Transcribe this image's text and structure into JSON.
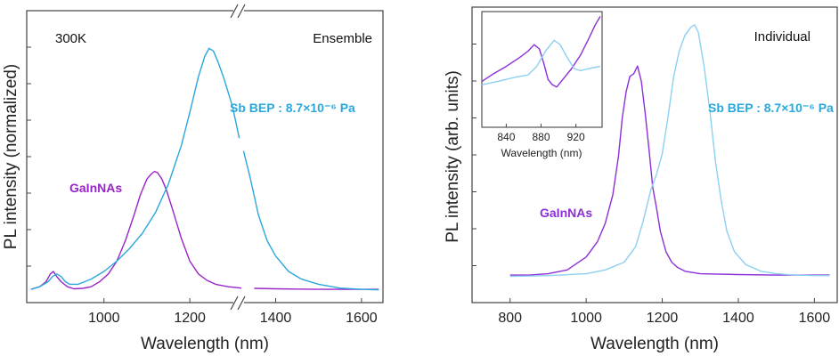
{
  "chart_data": [
    {
      "type": "line",
      "panel": "left",
      "annotations": {
        "temperature": "300K",
        "mode": "Ensemble"
      },
      "xlabel": "Wavelength (nm)",
      "ylabel": "PL intensity (normalized)",
      "xlim": [
        820,
        1650
      ],
      "xbreak": [
        1320,
        1325
      ],
      "ylim": [
        0,
        1
      ],
      "xticks": [
        1000,
        1200,
        1400,
        1600
      ],
      "xtick_labels": [
        "1000",
        "1200",
        "1400",
        "1600"
      ],
      "series": [
        {
          "name": "GaInNAs",
          "color": "#9a24c8",
          "x": [
            830,
            850,
            865,
            875,
            882,
            890,
            900,
            915,
            930,
            950,
            970,
            990,
            1010,
            1030,
            1050,
            1070,
            1085,
            1100,
            1110,
            1118,
            1125,
            1135,
            1145,
            1160,
            1180,
            1200,
            1220,
            1240,
            1260,
            1290,
            1320,
            1350,
            1400,
            1450,
            1500,
            1550,
            1600,
            1640
          ],
          "values": [
            0.01,
            0.02,
            0.04,
            0.07,
            0.08,
            0.06,
            0.04,
            0.02,
            0.012,
            0.014,
            0.02,
            0.04,
            0.07,
            0.12,
            0.2,
            0.3,
            0.38,
            0.44,
            0.46,
            0.47,
            0.465,
            0.44,
            0.4,
            0.32,
            0.21,
            0.12,
            0.07,
            0.045,
            0.03,
            0.02,
            0.015,
            0.014,
            0.012,
            0.011,
            0.01,
            0.01,
            0.01,
            0.01
          ]
        },
        {
          "name": "Sb BEP : 8.7×10⁻⁶ Pa",
          "color": "#2aa8dc",
          "x": [
            830,
            850,
            870,
            880,
            890,
            900,
            910,
            920,
            940,
            970,
            1000,
            1030,
            1060,
            1090,
            1120,
            1150,
            1180,
            1200,
            1220,
            1235,
            1245,
            1255,
            1265,
            1280,
            1300,
            1315,
            1325,
            1340,
            1360,
            1380,
            1400,
            1430,
            1460,
            1500,
            1550,
            1600,
            1640
          ],
          "values": [
            0.01,
            0.02,
            0.04,
            0.06,
            0.07,
            0.06,
            0.04,
            0.03,
            0.03,
            0.05,
            0.08,
            0.12,
            0.17,
            0.23,
            0.31,
            0.42,
            0.57,
            0.7,
            0.84,
            0.92,
            0.95,
            0.94,
            0.9,
            0.83,
            0.72,
            0.6,
            0.55,
            0.45,
            0.3,
            0.2,
            0.14,
            0.08,
            0.05,
            0.03,
            0.015,
            0.01,
            0.008
          ]
        }
      ]
    },
    {
      "type": "line",
      "panel": "right",
      "annotations": {
        "mode": "Individual"
      },
      "xlabel": "Wavelength (nm)",
      "ylabel": "PL intensity (arb. units)",
      "xlim": [
        700,
        1660
      ],
      "ylim": [
        0,
        1
      ],
      "xticks": [
        800,
        1000,
        1200,
        1400,
        1600
      ],
      "xtick_labels": [
        "800",
        "1000",
        "1200",
        "1400",
        "1600"
      ],
      "series": [
        {
          "name": "GaInNAs",
          "color": "#8b2fd8",
          "x": [
            800,
            850,
            900,
            950,
            1000,
            1030,
            1050,
            1070,
            1085,
            1095,
            1105,
            1115,
            1125,
            1135,
            1145,
            1155,
            1165,
            1175,
            1185,
            1195,
            1210,
            1225,
            1240,
            1260,
            1300,
            1400,
            1500,
            1600,
            1640
          ],
          "values": [
            0.01,
            0.01,
            0.015,
            0.03,
            0.08,
            0.14,
            0.21,
            0.32,
            0.47,
            0.62,
            0.72,
            0.78,
            0.79,
            0.82,
            0.76,
            0.64,
            0.5,
            0.35,
            0.27,
            0.18,
            0.1,
            0.06,
            0.04,
            0.025,
            0.015,
            0.012,
            0.01,
            0.01,
            0.01
          ]
        },
        {
          "name": "Sb BEP : 8.7×10⁻⁶ Pa",
          "color": "#8cd0f0",
          "x": [
            800,
            900,
            1000,
            1050,
            1100,
            1130,
            1150,
            1170,
            1185,
            1200,
            1215,
            1230,
            1245,
            1260,
            1275,
            1285,
            1295,
            1310,
            1325,
            1340,
            1355,
            1370,
            1390,
            1420,
            1460,
            1500,
            1550,
            1600,
            1640
          ],
          "values": [
            0.005,
            0.008,
            0.015,
            0.03,
            0.06,
            0.12,
            0.22,
            0.34,
            0.4,
            0.48,
            0.62,
            0.78,
            0.88,
            0.94,
            0.97,
            0.98,
            0.95,
            0.82,
            0.65,
            0.45,
            0.3,
            0.18,
            0.1,
            0.05,
            0.025,
            0.015,
            0.01,
            0.008,
            0.008
          ]
        }
      ]
    },
    {
      "type": "line",
      "panel": "inset",
      "xlabel": "Wavelength (nm)",
      "xlim": [
        812,
        950
      ],
      "ylim": [
        0,
        1
      ],
      "xticks": [
        840,
        880,
        920
      ],
      "xtick_labels": [
        "840",
        "880",
        "920"
      ],
      "series": [
        {
          "name": "GaInNAs",
          "color": "#8b2fd8",
          "x": [
            812,
            825,
            840,
            855,
            865,
            872,
            878,
            883,
            888,
            893,
            898,
            905,
            915,
            925,
            935,
            942,
            948
          ],
          "values": [
            0.38,
            0.45,
            0.52,
            0.6,
            0.66,
            0.72,
            0.68,
            0.55,
            0.4,
            0.35,
            0.33,
            0.4,
            0.5,
            0.62,
            0.78,
            0.9,
            0.98
          ]
        },
        {
          "name": "Sb BEP : 8.7×10⁻⁶ Pa",
          "color": "#8cd0f0",
          "x": [
            812,
            830,
            850,
            865,
            875,
            885,
            895,
            902,
            910,
            918,
            925,
            935,
            948
          ],
          "values": [
            0.35,
            0.38,
            0.42,
            0.44,
            0.52,
            0.66,
            0.76,
            0.72,
            0.6,
            0.5,
            0.48,
            0.5,
            0.52
          ]
        }
      ]
    }
  ]
}
